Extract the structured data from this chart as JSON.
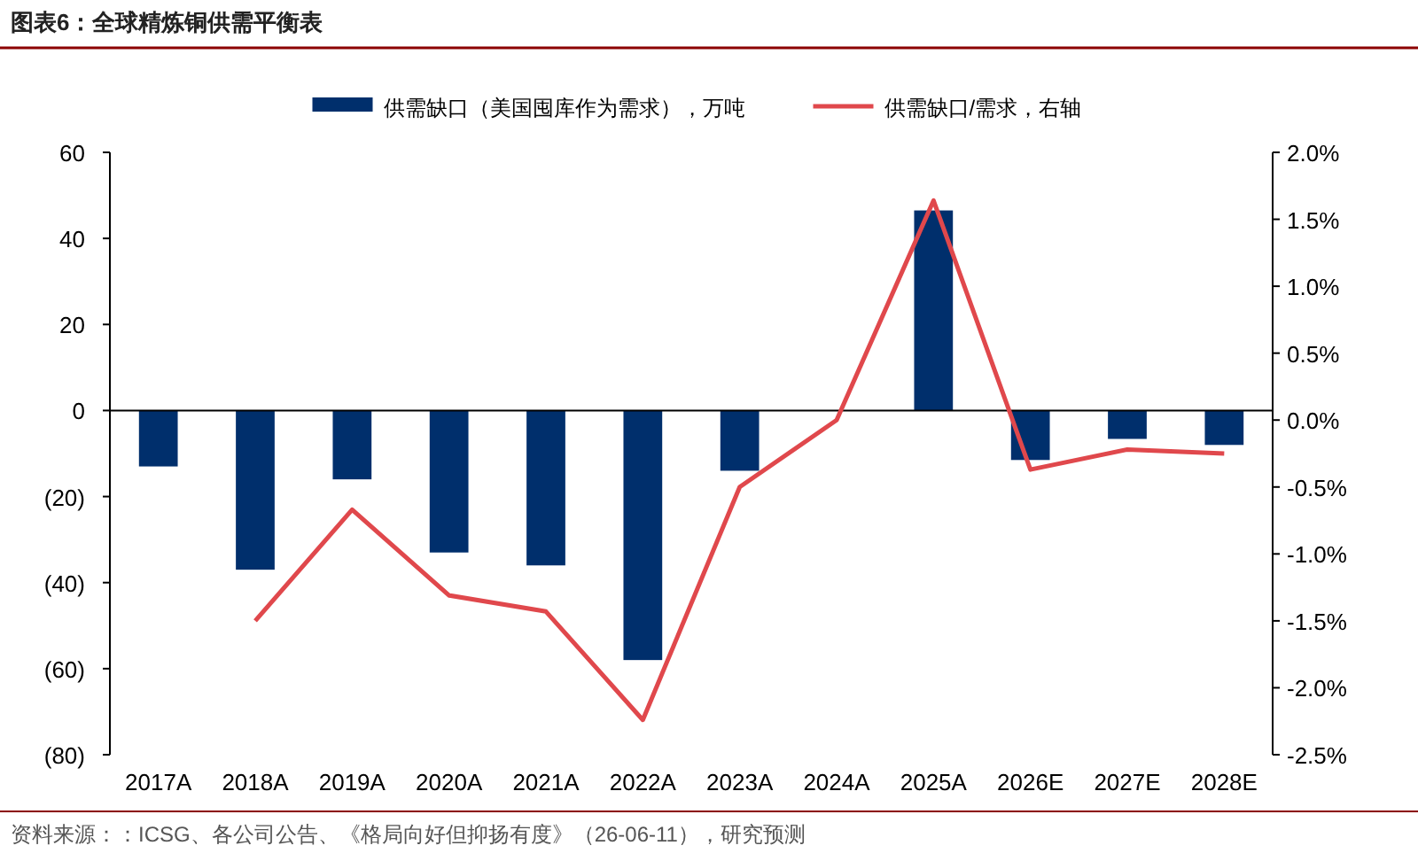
{
  "chart_data": {
    "type": "bar",
    "title": "图表6：全球精炼铜供需平衡表",
    "categories": [
      "2017A",
      "2018A",
      "2019A",
      "2020A",
      "2021A",
      "2022A",
      "2023A",
      "2024A",
      "2025A",
      "2026E",
      "2027E",
      "2028E"
    ],
    "series": [
      {
        "name": "供需缺口（美国囤库作为需求），万吨",
        "color": "#002f6c",
        "values": [
          -13,
          -37,
          -16,
          -33,
          -36,
          -58,
          -14,
          0,
          46.5,
          -11.5,
          -6.6,
          -8
        ]
      },
      {
        "name": "供需缺口/需求，右轴",
        "type": "line",
        "axis": "y2",
        "color": "#e0484c",
        "values": [
          null,
          -1.5,
          -0.67,
          -1.31,
          -1.43,
          -2.24,
          -0.5,
          0.0,
          1.64,
          -0.37,
          -0.22,
          -0.25
        ]
      }
    ],
    "ylim": [
      -80,
      60
    ],
    "yticks": [
      {
        "value": -80,
        "label": "(80)"
      },
      {
        "value": -60,
        "label": "(60)"
      },
      {
        "value": -40,
        "label": "(40)"
      },
      {
        "value": -20,
        "label": "(20)"
      },
      0,
      20,
      40,
      60
    ],
    "y2lim": [
      -2.5,
      2.0
    ],
    "y2ticks": [
      {
        "value": -2.5,
        "label": "-2.5%"
      },
      {
        "value": -2.0,
        "label": "-2.0%"
      },
      {
        "value": -1.5,
        "label": "-1.5%"
      },
      {
        "value": -1.0,
        "label": "-1.0%"
      },
      {
        "value": -0.5,
        "label": "-0.5%"
      },
      {
        "value": 0,
        "label": "0.0%"
      },
      {
        "value": 0.5,
        "label": "0.5%"
      },
      {
        "value": 1.0,
        "label": "1.0%"
      },
      {
        "value": 1.5,
        "label": "1.5%"
      },
      {
        "value": 2.0,
        "label": "2.0%"
      }
    ],
    "legend": "top",
    "annotations": [
      "资料来源：：ICSG、各公司公告、《格局向好但抑扬有度》（26-06-11），研究预测"
    ]
  }
}
